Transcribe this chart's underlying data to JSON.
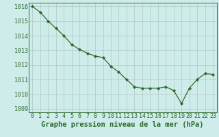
{
  "x": [
    0,
    1,
    2,
    3,
    4,
    5,
    6,
    7,
    8,
    9,
    10,
    11,
    12,
    13,
    14,
    15,
    16,
    17,
    18,
    19,
    20,
    21,
    22,
    23
  ],
  "y": [
    1016.0,
    1015.6,
    1015.0,
    1014.5,
    1014.0,
    1013.4,
    1013.05,
    1012.8,
    1012.6,
    1012.5,
    1011.9,
    1011.5,
    1011.0,
    1010.5,
    1010.4,
    1010.4,
    1010.4,
    1010.5,
    1010.25,
    1009.35,
    1010.4,
    1011.0,
    1011.4,
    1011.35
  ],
  "line_color": "#2d6a2d",
  "marker_color": "#2d6a2d",
  "bg_color": "#ceecea",
  "grid_color": "#b0c8c6",
  "xlabel": "Graphe pression niveau de la mer (hPa)",
  "ylim": [
    1008.75,
    1016.25
  ],
  "xlim": [
    -0.5,
    23.5
  ],
  "yticks": [
    1009,
    1010,
    1011,
    1012,
    1013,
    1014,
    1015,
    1016
  ],
  "xticks": [
    0,
    1,
    2,
    3,
    4,
    5,
    6,
    7,
    8,
    9,
    10,
    11,
    12,
    13,
    14,
    15,
    16,
    17,
    18,
    19,
    20,
    21,
    22,
    23
  ],
  "xlabel_fontsize": 7.5,
  "tick_fontsize": 6.0
}
